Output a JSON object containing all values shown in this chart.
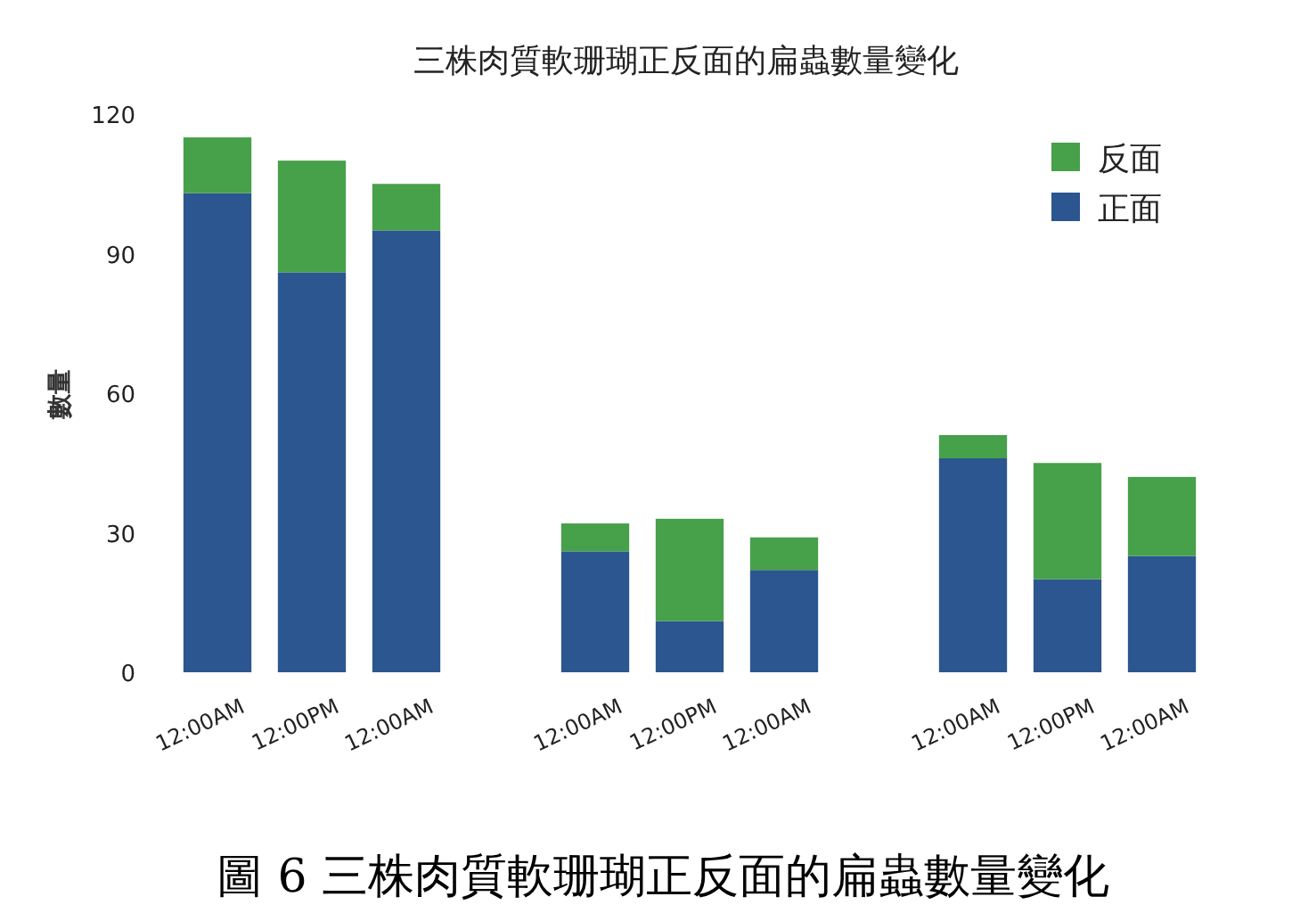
{
  "chart_data": {
    "type": "bar",
    "stacked": true,
    "title": "三株肉質軟珊瑚正反面的扁蟲數量變化",
    "ylabel": "數量",
    "categories": [
      "12:00AM",
      "12:00PM",
      "12:00AM",
      null,
      "12:00AM",
      "12:00PM",
      "12:00AM",
      null,
      "12:00AM",
      "12:00PM",
      "12:00AM"
    ],
    "series": [
      {
        "name": "正面",
        "color": "#2b5690",
        "values": [
          103,
          86,
          95,
          null,
          26,
          11,
          22,
          null,
          46,
          20,
          25
        ]
      },
      {
        "name": "反面",
        "color": "#47a04a",
        "values": [
          12,
          24,
          10,
          null,
          6,
          22,
          7,
          null,
          5,
          25,
          17
        ]
      }
    ],
    "ylim": [
      0,
      120
    ],
    "yticks": [
      0,
      30,
      60,
      90,
      120
    ],
    "legend": "top right",
    "annotations": [
      "圖 6 三株肉質軟珊瑚正反面的扁蟲數量變化"
    ]
  }
}
